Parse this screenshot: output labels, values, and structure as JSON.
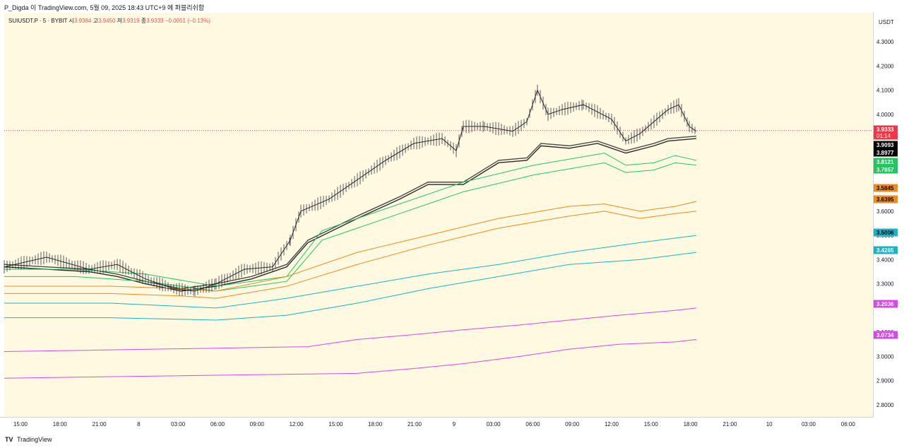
{
  "header": {
    "title": "P_Digda 이 TradingView.com, 5월 09, 2025 18:43 UTC+9 에 퍼블리쉬함"
  },
  "symbol": {
    "name": "SUIUSDT.P · 5 · BYBIT",
    "open_label": "시",
    "open": "3.9384",
    "high_label": "고",
    "high": "3.9450",
    "low_label": "저",
    "low": "3.9319",
    "close_label": "종",
    "close": "3.9333",
    "change": "−0.0051 (−0.13%)"
  },
  "footer": {
    "logo": "𝟭𝟳",
    "brand": "TradingView"
  },
  "chart_data": {
    "type": "line",
    "currency": "USDT",
    "y_ticks": [
      "4.3000",
      "4.2000",
      "4.1000",
      "4.0000",
      "3.7000",
      "3.6000",
      "3.5000",
      "3.4000",
      "3.3000",
      "3.1000",
      "3.0000",
      "2.9000",
      "2.8000"
    ],
    "ylim": [
      2.75,
      4.42
    ],
    "x_ticks": [
      "15:00",
      "18:00",
      "21:00",
      "8",
      "03:00",
      "06:00",
      "09:00",
      "12:00",
      "15:00",
      "18:00",
      "21:00",
      "9",
      "03:00",
      "06:00",
      "09:00",
      "12:00",
      "15:00",
      "18:00",
      "21:00",
      "10",
      "03:00",
      "06:00"
    ],
    "price_labels": [
      {
        "value": "3.9333",
        "sub": "01:14",
        "color": "#f23645",
        "text_color": "#ffffff"
      },
      {
        "value": "3.9093",
        "color": "#000000",
        "text_color": "#ffffff"
      },
      {
        "value": "3.8977",
        "color": "#000000",
        "text_color": "#ffffff"
      },
      {
        "value": "3.8121",
        "color": "#22c55e",
        "text_color": "#ffffff"
      },
      {
        "value": "3.7857",
        "color": "#22c55e",
        "text_color": "#ffffff"
      },
      {
        "value": "3.5845",
        "color": "#f08a1a",
        "text_color": "#000000"
      },
      {
        "value": "3.6395",
        "color": "#f08a1a",
        "text_color": "#000000"
      },
      {
        "value": "3.5006",
        "color": "#17b3c7",
        "text_color": "#000000"
      },
      {
        "value": "3.4265",
        "color": "#17b3c7",
        "text_color": "#ffffff"
      },
      {
        "value": "3.2036",
        "color": "#d946ef",
        "text_color": "#ffffff"
      },
      {
        "value": "3.0734",
        "color": "#d946ef",
        "text_color": "#ffffff"
      }
    ],
    "last_price": 3.9333,
    "series": [
      {
        "color": "#4a4a4a",
        "x": [
          0,
          60,
          120,
          160,
          200,
          250,
          300,
          350,
          400,
          430,
          500,
          560,
          600,
          650,
          700,
          740,
          760,
          800,
          840,
          880,
          920,
          940,
          980
        ],
        "values": [
          3.38,
          3.37,
          3.36,
          3.34,
          3.31,
          3.28,
          3.3,
          3.33,
          3.38,
          3.48,
          3.58,
          3.66,
          3.72,
          3.72,
          3.81,
          3.82,
          3.88,
          3.87,
          3.89,
          3.85,
          3.88,
          3.9,
          3.91
        ]
      },
      {
        "color": "#2a2a2a",
        "x": [
          0,
          60,
          120,
          160,
          200,
          250,
          300,
          350,
          400,
          430,
          500,
          560,
          600,
          650,
          700,
          740,
          760,
          800,
          840,
          880,
          920,
          940,
          980
        ],
        "values": [
          3.37,
          3.36,
          3.35,
          3.33,
          3.3,
          3.27,
          3.29,
          3.32,
          3.37,
          3.47,
          3.57,
          3.65,
          3.71,
          3.71,
          3.8,
          3.81,
          3.87,
          3.86,
          3.88,
          3.84,
          3.87,
          3.89,
          3.9
        ]
      },
      {
        "color": "#22c55e",
        "x": [
          0,
          100,
          200,
          300,
          400,
          450,
          550,
          650,
          750,
          850,
          880,
          920,
          950,
          980
        ],
        "values": [
          3.36,
          3.36,
          3.34,
          3.29,
          3.33,
          3.52,
          3.62,
          3.72,
          3.79,
          3.84,
          3.79,
          3.8,
          3.83,
          3.81
        ]
      },
      {
        "color": "#22c55e",
        "x": [
          0,
          100,
          200,
          300,
          400,
          450,
          550,
          650,
          750,
          850,
          880,
          920,
          950,
          980
        ],
        "values": [
          3.33,
          3.33,
          3.31,
          3.27,
          3.31,
          3.48,
          3.58,
          3.68,
          3.75,
          3.8,
          3.76,
          3.77,
          3.8,
          3.79
        ]
      },
      {
        "color": "#f08a1a",
        "x": [
          0,
          150,
          250,
          300,
          400,
          500,
          600,
          700,
          800,
          850,
          900,
          950,
          980
        ],
        "values": [
          3.29,
          3.29,
          3.28,
          3.27,
          3.33,
          3.43,
          3.5,
          3.57,
          3.62,
          3.63,
          3.6,
          3.62,
          3.64
        ]
      },
      {
        "color": "#f08a1a",
        "x": [
          0,
          150,
          250,
          300,
          400,
          500,
          600,
          700,
          800,
          850,
          900,
          950,
          980
        ],
        "values": [
          3.26,
          3.26,
          3.25,
          3.24,
          3.29,
          3.38,
          3.46,
          3.53,
          3.58,
          3.6,
          3.57,
          3.59,
          3.6
        ]
      },
      {
        "color": "#17b3c7",
        "x": [
          0,
          150,
          300,
          400,
          500,
          600,
          700,
          800,
          900,
          980
        ],
        "values": [
          3.22,
          3.22,
          3.2,
          3.24,
          3.29,
          3.34,
          3.38,
          3.43,
          3.47,
          3.5
        ]
      },
      {
        "color": "#17b3c7",
        "x": [
          0,
          150,
          300,
          400,
          500,
          600,
          700,
          800,
          900,
          980
        ],
        "values": [
          3.16,
          3.16,
          3.15,
          3.17,
          3.22,
          3.28,
          3.33,
          3.38,
          3.4,
          3.43
        ]
      },
      {
        "color": "#d946ef",
        "x": [
          0,
          430,
          500,
          580,
          650,
          730,
          800,
          870,
          950,
          980
        ],
        "values": [
          3.02,
          3.04,
          3.07,
          3.09,
          3.11,
          3.13,
          3.15,
          3.17,
          3.19,
          3.2
        ]
      },
      {
        "color": "#d946ef",
        "x": [
          0,
          500,
          580,
          650,
          730,
          800,
          870,
          950,
          980
        ],
        "values": [
          2.91,
          2.93,
          2.95,
          2.97,
          3.0,
          3.03,
          3.05,
          3.06,
          3.07
        ]
      }
    ],
    "candles_path": {
      "x": [
        0,
        60,
        120,
        160,
        200,
        240,
        270,
        300,
        340,
        380,
        405,
        420,
        460,
        500,
        540,
        580,
        620,
        640,
        650,
        680,
        720,
        740,
        755,
        770,
        790,
        820,
        860,
        880,
        900,
        920,
        940,
        955,
        970,
        980
      ],
      "values": [
        3.37,
        3.41,
        3.36,
        3.38,
        3.32,
        3.28,
        3.27,
        3.3,
        3.36,
        3.37,
        3.48,
        3.6,
        3.65,
        3.73,
        3.81,
        3.88,
        3.9,
        3.85,
        3.95,
        3.95,
        3.93,
        3.97,
        4.1,
        4.0,
        4.02,
        4.04,
        3.98,
        3.89,
        3.92,
        3.97,
        4.02,
        4.04,
        3.95,
        3.93
      ]
    }
  }
}
